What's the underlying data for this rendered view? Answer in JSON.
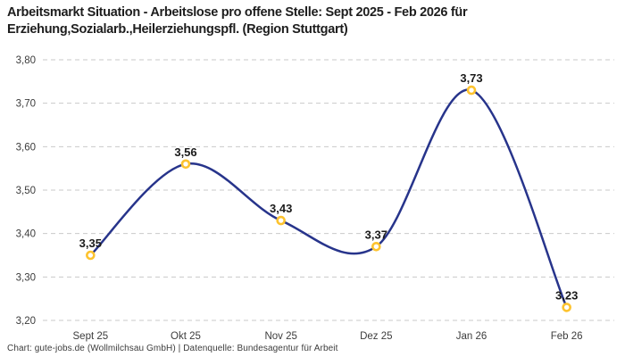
{
  "header": {
    "title": "Arbeitsmarkt Situation - Arbeitslose pro offene Stelle: Sept 2025 - Feb 2026 für Erziehung,Sozialarb.,Heilerziehungspfl. (Region Stuttgart)"
  },
  "chart_data": {
    "type": "line",
    "title": "Arbeitsmarkt Situation - Arbeitslose pro offene Stelle: Sept 2025 - Feb 2026 für Erziehung,Sozialarb.,Heilerziehungspfl. (Region Stuttgart)",
    "categories": [
      "Sept 25",
      "Okt 25",
      "Nov 25",
      "Dez 25",
      "Jan 26",
      "Feb 26"
    ],
    "values": [
      3.35,
      3.56,
      3.43,
      3.37,
      3.73,
      3.23
    ],
    "value_labels": [
      "3,35",
      "3,56",
      "3,43",
      "3,37",
      "3,73",
      "3,23"
    ],
    "y_ticks": [
      {
        "value": 3.8,
        "label": "3,80"
      },
      {
        "value": 3.7,
        "label": "3,70"
      },
      {
        "value": 3.6,
        "label": "3,60"
      },
      {
        "value": 3.5,
        "label": "3,50"
      },
      {
        "value": 3.4,
        "label": "3,40"
      },
      {
        "value": 3.3,
        "label": "3,30"
      },
      {
        "value": 3.2,
        "label": "3,20"
      }
    ],
    "ylim": [
      3.2,
      3.8
    ],
    "xlabel": "",
    "ylabel": "",
    "grid": "horizontal-dashed",
    "legend": "none",
    "smoothing": "catmull-rom",
    "colors": {
      "line": "#27348b",
      "marker_ring": "#fdc32f",
      "marker_fill": "#ffffff",
      "gridline": "#c9c9c9",
      "tick_text": "#3c3c3c",
      "value_label_text": "#1a1a1a"
    }
  },
  "footer": {
    "attribution": "Chart: gute-jobs.de (Wollmilchsau GmbH) | Datenquelle: Bundesagentur für Arbeit"
  }
}
